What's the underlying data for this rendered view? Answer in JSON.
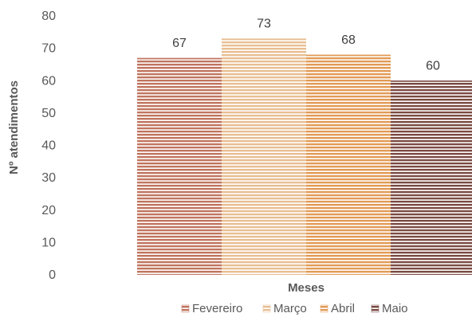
{
  "chart_data": {
    "type": "bar",
    "title": "",
    "xlabel": "Meses",
    "ylabel": "Nº atendimentos",
    "ylim": [
      0,
      80
    ],
    "yticks": [
      0,
      10,
      20,
      30,
      40,
      50,
      60,
      70,
      80
    ],
    "grid": false,
    "legend_position": "bottom",
    "data_labels": true,
    "categories": [
      ""
    ],
    "series": [
      {
        "name": "Fevereiro",
        "values": [
          67
        ],
        "color": "#C0745E"
      },
      {
        "name": "Março",
        "values": [
          73
        ],
        "color": "#E8BE92"
      },
      {
        "name": "Abril",
        "values": [
          68
        ],
        "color": "#E29A55"
      },
      {
        "name": "Maio",
        "values": [
          60
        ],
        "color": "#7A4A42"
      }
    ],
    "pattern": "horizontal-stripes"
  }
}
